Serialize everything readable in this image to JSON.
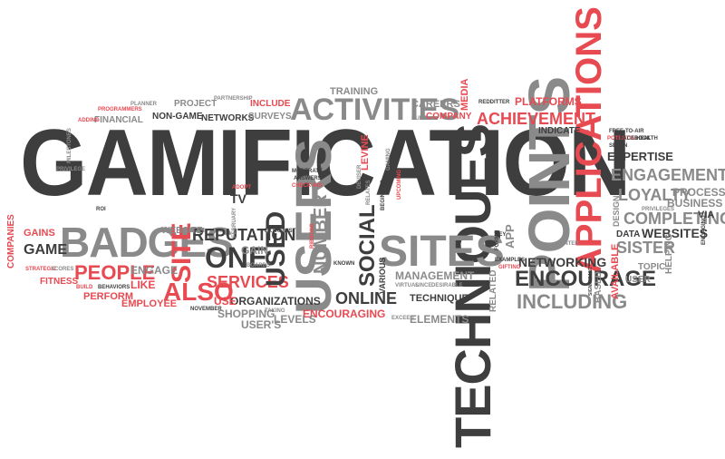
{
  "colors": {
    "dark": "#3e3e3e",
    "light": "#8a8a8a",
    "accent": "#e84a52",
    "background": "#ffffff"
  },
  "words": {
    "gamification": "GAMIFICATION",
    "techniques": "TECHNIQUES",
    "points": "POINTS",
    "applications": "APPLICATIONS",
    "users": "USERS",
    "sites": "SITES",
    "badges": "BADGES",
    "activities": "ACTIVITIES",
    "achievement": "ACHIEVEMENT",
    "encourage": "ENCOURAGE",
    "people": "PEOPLE",
    "reputation": "REPUTATION",
    "one": "ONE",
    "site": "SITE",
    "also": "ALSO",
    "services": "SERVICES",
    "used": "USED",
    "social": "SOCIAL",
    "online": "ONLINE",
    "engagement": "ENGAGEMENT",
    "loyalty": "LOYALTY",
    "completing": "COMPLETING",
    "websites": "WEBSITES",
    "sister": "SISTER",
    "including": "INCLUDING",
    "networking": "NETWORKING",
    "management": "MANAGEMENT",
    "technique": "TECHNIQUE",
    "elements": "ELEMENTS",
    "encouraging": "ENCOURAGING",
    "organizations": "ORGANIZATIONS",
    "shopping": "SHOPPING",
    "users_poss": "USER'S",
    "levels": "LEVELS",
    "number": "NUMBER",
    "game": "GAME",
    "gains": "GAINS",
    "fitness": "FITNESS",
    "perform": "PERFORM",
    "employee": "EMPLOYEE",
    "engage": "ENGAGE",
    "like": "LIKE",
    "website": "WEBSITE",
    "gain": "GAIN",
    "tv": "TV",
    "use": "USE",
    "companies": "COMPANIES",
    "project": "PROJECT",
    "financial": "FINANCIAL",
    "non_game": "NON-GAME",
    "networks": "NETWORKS",
    "include": "INCLUDE",
    "surveys": "SURVEYS",
    "training": "TRAINING",
    "careers": "CAREERS",
    "company": "COMPANY",
    "media": "MEDIA",
    "platforms": "PLATFORMS",
    "indicate": "INDICATE",
    "expertise": "EXPERTISE",
    "processes": "PROCESSES",
    "business": "BUSINESS",
    "via": "VIA",
    "design": "DESIGN",
    "data": "DATA",
    "topic": "TOPIC",
    "user": "USER",
    "helping": "HELPING",
    "available": "AVAILABLE",
    "based": "BASED",
    "related": "RELATED",
    "app": "APP",
    "various": "VARIOUS",
    "levine": "LEVINE",
    "programmers": "PROGRAMMERS",
    "adding": "ADDING",
    "planner": "PLANNER",
    "partnership": "PARTNERSHIP",
    "milestones": "MILESTONES",
    "privilege": "PRIVILEGE",
    "roi": "ROI",
    "strategic": "STRATEGIC",
    "scores": "SCORES",
    "build": "BUILD",
    "behaviors": "BEHAVIORS",
    "november": "NOVEMBER",
    "adopt": "ADOPT",
    "february": "FEBRUARY",
    "extremist": "EXTREMIST",
    "boards": "BOARDS",
    "taking": "TAKING",
    "moderate": "MODERATE",
    "answers": "ANSWERS",
    "check_ins": "CHECK-INS",
    "ribbons": "RIBBONS",
    "known": "KNOWN",
    "deviser": "DEVISER",
    "relates": "RELATES",
    "beginning": "BEGINNING",
    "gaming": "GAMING",
    "upcoming": "UPCOMING",
    "built": "BUILT",
    "redditter": "REDDITTER",
    "virtual": "VIRTUAL",
    "since": "SINCE",
    "desirable": "DESIRABLE",
    "exceed": "EXCEED",
    "key": "KEY",
    "forms": "FORMS",
    "examples": "EXAMPLES",
    "gifting": "GIFTING",
    "center": "CENTER",
    "significant": "SIGNIFICANT",
    "potential": "POTENTIAL",
    "free_to_air": "FREE-TO-AIR",
    "health": "HEALTH",
    "facebook": "FACEBOOK",
    "seven": "SEVEN",
    "privileges": "PRIVILEGES",
    "engaging": "ENGAGING"
  }
}
